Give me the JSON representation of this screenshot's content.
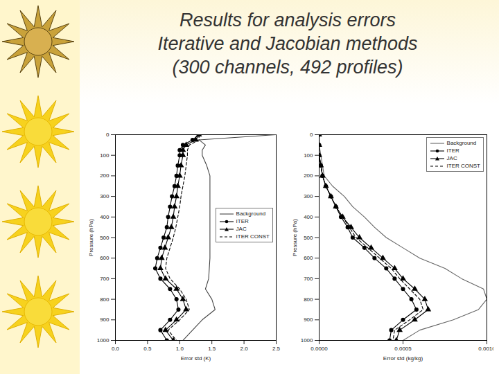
{
  "slide_title": [
    "Results for analysis errors",
    "Iterative and Jacobian methods",
    "(300 channels, 492 profiles)"
  ],
  "chart_data": [
    {
      "type": "line",
      "x_label": "Error std (K)",
      "y_label": "Pressure (hPa)",
      "y": [
        0,
        25,
        50,
        75,
        100,
        150,
        200,
        250,
        300,
        350,
        400,
        450,
        500,
        550,
        600,
        650,
        700,
        750,
        800,
        850,
        900,
        950,
        1000
      ],
      "xlim": [
        0,
        2.5
      ],
      "xticks": [
        {
          "value": 0,
          "label": "0.0"
        },
        {
          "value": 0.5,
          "label": "0.5"
        },
        {
          "value": 1,
          "label": "1.0"
        },
        {
          "value": 1.5,
          "label": "1.5"
        },
        {
          "value": 2,
          "label": "2.0"
        },
        {
          "value": 2.5,
          "label": "2.5"
        }
      ],
      "ylim": [
        1000,
        0
      ],
      "yticks": [
        0,
        100,
        200,
        300,
        400,
        500,
        600,
        700,
        800,
        900,
        1000
      ],
      "grid": false,
      "legend": "right",
      "series": [
        {
          "name": "Background",
          "color": "#444444",
          "marker": "none",
          "line_style": "solid",
          "values": [
            2.5,
            1.3,
            1.4,
            1.35,
            1.35,
            1.42,
            1.47,
            1.47,
            1.47,
            1.47,
            1.47,
            1.47,
            1.47,
            1.47,
            1.47,
            1.46,
            1.45,
            1.4,
            1.5,
            1.55,
            1.35,
            1.2,
            1.05
          ]
        },
        {
          "name": "ITER",
          "color": "#000000",
          "marker": "circle",
          "line_style": "solid",
          "values": [
            1.3,
            1.2,
            1.05,
            1.0,
            1.0,
            0.97,
            0.95,
            0.92,
            0.88,
            0.85,
            0.82,
            0.8,
            0.75,
            0.7,
            0.65,
            0.62,
            0.7,
            0.85,
            0.95,
            0.98,
            0.85,
            0.7,
            0.8
          ]
        },
        {
          "name": "JAC",
          "color": "#000000",
          "marker": "triangle",
          "line_style": "solid",
          "values": [
            1.3,
            1.25,
            1.1,
            1.05,
            1.05,
            1.02,
            1.0,
            0.97,
            0.95,
            0.92,
            0.9,
            0.87,
            0.82,
            0.77,
            0.72,
            0.7,
            0.78,
            0.95,
            1.05,
            1.1,
            0.95,
            0.78,
            0.9
          ]
        },
        {
          "name": "ITER CONST",
          "color": "#000000",
          "marker": "none",
          "line_style": "dashed",
          "values": [
            1.3,
            1.3,
            1.15,
            1.12,
            1.12,
            1.1,
            1.08,
            1.05,
            1.02,
            1.0,
            0.97,
            0.94,
            0.9,
            0.85,
            0.8,
            0.78,
            0.85,
            1.0,
            1.1,
            1.15,
            1.0,
            0.82,
            0.95
          ]
        }
      ]
    },
    {
      "type": "line",
      "x_label": "Error std (kg/kg)",
      "y_label": "Pressure (hPa)",
      "y": [
        0,
        50,
        100,
        150,
        200,
        250,
        300,
        350,
        400,
        450,
        500,
        550,
        600,
        650,
        700,
        750,
        800,
        850,
        900,
        950,
        1000
      ],
      "xlim": [
        0,
        0.001
      ],
      "xticks": [
        {
          "value": 0,
          "label": "0.0000"
        },
        {
          "value": 0.0005,
          "label": "0.0005"
        },
        {
          "value": 0.001,
          "label": "0.0010"
        }
      ],
      "ylim": [
        1000,
        0
      ],
      "yticks": [
        0,
        100,
        200,
        300,
        400,
        500,
        600,
        700,
        800,
        900,
        1000
      ],
      "grid": false,
      "legend": "upper right",
      "series": [
        {
          "name": "Background",
          "color": "#666666",
          "marker": "none",
          "line_style": "solid",
          "values": [
            0,
            0,
            1e-05,
            2e-05,
            3e-05,
            8e-05,
            0.00015,
            0.0002,
            0.00027,
            0.00033,
            0.0004,
            0.0005,
            0.0006,
            0.00075,
            0.00085,
            0.00098,
            0.001,
            0.00095,
            0.0008,
            0.0006,
            0.0005
          ]
        },
        {
          "name": "ITER",
          "color": "#000000",
          "marker": "circle",
          "line_style": "solid",
          "values": [
            0,
            0,
            0,
            1e-05,
            2e-05,
            4e-05,
            7e-05,
            0.0001,
            0.00013,
            0.00017,
            0.0002,
            0.00027,
            0.00033,
            0.0004,
            0.00045,
            0.0005,
            0.00055,
            0.00058,
            0.0005,
            0.00043,
            0.00042
          ]
        },
        {
          "name": "JAC",
          "color": "#000000",
          "marker": "triangle",
          "line_style": "solid",
          "values": [
            0,
            0,
            0,
            1e-05,
            2e-05,
            4e-05,
            7e-05,
            0.0001,
            0.00014,
            0.00019,
            0.00024,
            0.00031,
            0.00038,
            0.00045,
            0.0005,
            0.00057,
            0.00063,
            0.00065,
            0.00057,
            0.00048,
            0.00046
          ]
        },
        {
          "name": "ITER CONST",
          "color": "#000000",
          "marker": "none",
          "line_style": "dashed",
          "values": [
            0,
            0,
            0,
            1e-05,
            2e-05,
            4e-05,
            7e-05,
            0.0001,
            0.00014,
            0.00018,
            0.00022,
            0.00029,
            0.00036,
            0.00043,
            0.00048,
            0.00054,
            0.0006,
            0.00062,
            0.00054,
            0.00045,
            0.00044
          ]
        }
      ]
    }
  ]
}
